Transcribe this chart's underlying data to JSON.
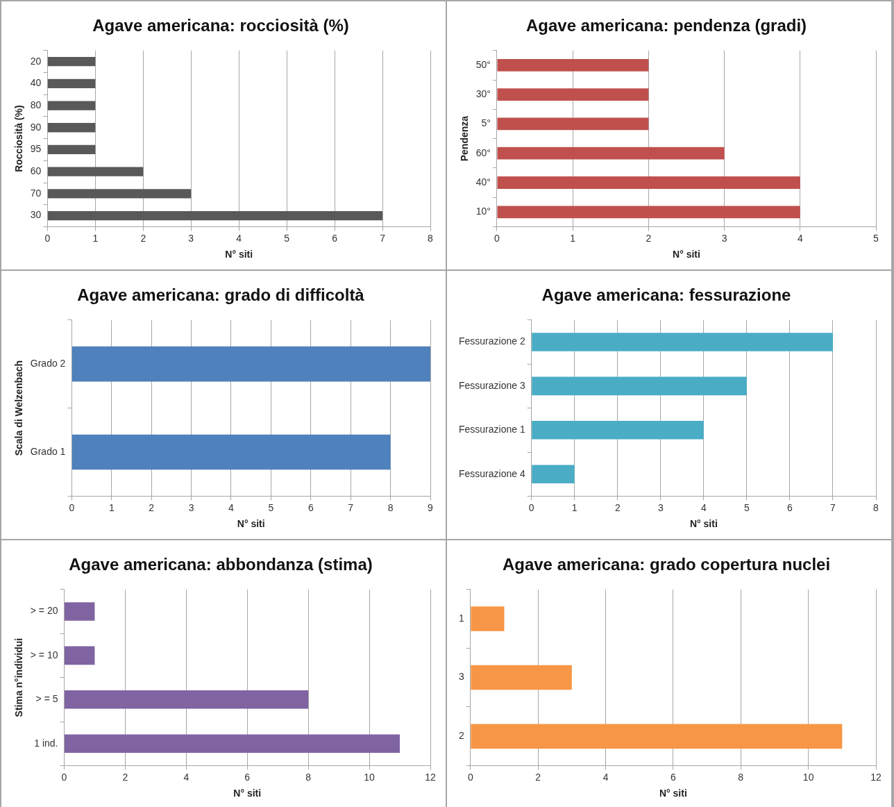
{
  "chart_data": [
    {
      "type": "bar",
      "orientation": "horizontal",
      "title": "Agave americana: rocciosità (%)",
      "xlabel": "N° siti",
      "ylabel": "Rocciosità (%)",
      "categories": [
        "20",
        "40",
        "80",
        "90",
        "95",
        "60",
        "70",
        "30"
      ],
      "values": [
        1,
        1,
        1,
        1,
        1,
        2,
        3,
        7
      ],
      "color": "#595959",
      "xlim": [
        0,
        8
      ],
      "xticks": [
        0,
        1,
        2,
        3,
        4,
        5,
        6,
        7,
        8
      ],
      "grid": "x"
    },
    {
      "type": "bar",
      "orientation": "horizontal",
      "title": "Agave americana: pendenza (gradi)",
      "xlabel": "N° siti",
      "ylabel": "Pendenza",
      "categories": [
        "50°",
        "30°",
        "5°",
        "60°",
        "40°",
        "10°"
      ],
      "values": [
        2,
        2,
        2,
        3,
        4,
        4
      ],
      "color": "#c0504d",
      "xlim": [
        0,
        5
      ],
      "xticks": [
        0,
        1,
        2,
        3,
        4,
        5
      ],
      "grid": "x"
    },
    {
      "type": "bar",
      "orientation": "horizontal",
      "title": "Agave americana: grado di difficoltà",
      "xlabel": "N° siti",
      "ylabel": "Scala di Welzenbach",
      "categories": [
        "Grado 2",
        "Grado 1"
      ],
      "values": [
        9,
        8
      ],
      "color": "#4f81bd",
      "xlim": [
        0,
        9
      ],
      "xticks": [
        0,
        1,
        2,
        3,
        4,
        5,
        6,
        7,
        8,
        9
      ],
      "grid": "x"
    },
    {
      "type": "bar",
      "orientation": "horizontal",
      "title": "Agave americana: fessurazione",
      "xlabel": "N° siti",
      "categories": [
        "Fessurazione 2",
        "Fessurazione 3",
        "Fessurazione 1",
        "Fessurazione 4"
      ],
      "values": [
        7,
        5,
        4,
        1
      ],
      "color": "#4bacc6",
      "xlim": [
        0,
        8
      ],
      "xticks": [
        0,
        1,
        2,
        3,
        4,
        5,
        6,
        7,
        8
      ],
      "grid": "x"
    },
    {
      "type": "bar",
      "orientation": "horizontal",
      "title": "Agave americana: abbondanza (stima)",
      "xlabel": "N° siti",
      "ylabel": "Stima n°individui",
      "categories": [
        "> = 20",
        "> = 10",
        "> = 5",
        "1 ind."
      ],
      "values": [
        1,
        1,
        8,
        11
      ],
      "color": "#8064a2",
      "xlim": [
        0,
        12
      ],
      "xticks": [
        0,
        2,
        4,
        6,
        8,
        10,
        12
      ],
      "grid": "x"
    },
    {
      "type": "bar",
      "orientation": "horizontal",
      "title": "Agave americana: grado copertura nuclei",
      "xlabel": "N° siti",
      "categories": [
        "1",
        "3",
        "2"
      ],
      "values": [
        1,
        3,
        11
      ],
      "color": "#f79646",
      "xlim": [
        0,
        12
      ],
      "xticks": [
        0,
        2,
        4,
        6,
        8,
        10,
        12
      ],
      "grid": "x"
    }
  ]
}
